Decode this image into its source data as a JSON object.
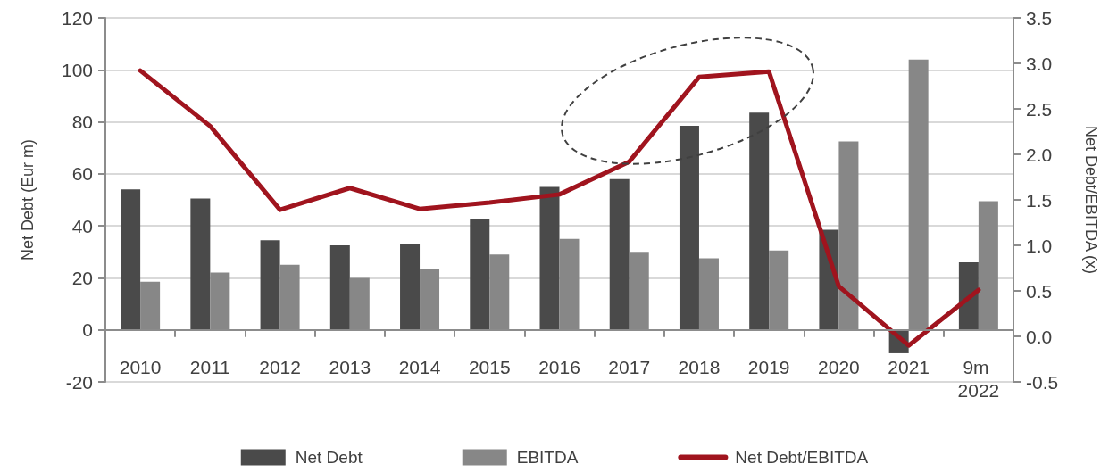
{
  "chart_data": {
    "type": "bar",
    "ylabel": "Net Debt (Eur m)",
    "y2label": "Net Debt/EBITDA (x)",
    "categories": [
      "2010",
      "2011",
      "2012",
      "2013",
      "2014",
      "2015",
      "2016",
      "2017",
      "2018",
      "2019",
      "2020",
      "2021",
      "9m 2022"
    ],
    "series": [
      {
        "name": "Net Debt",
        "color": "#4a4a4a",
        "values": [
          54,
          50.5,
          34.5,
          32.5,
          33,
          42.5,
          55,
          58,
          78.5,
          83.5,
          38.5,
          -9,
          26
        ]
      },
      {
        "name": "EBITDA",
        "color": "#878787",
        "values": [
          18.5,
          22,
          25,
          20,
          23.5,
          29,
          35,
          30,
          27.5,
          30.5,
          72.5,
          104,
          49.5
        ]
      },
      {
        "name": "Net Debt/EBITDA",
        "type": "line",
        "axis": "y2",
        "color": "#a0141e",
        "values": [
          2.92,
          2.31,
          1.39,
          1.63,
          1.4,
          1.47,
          1.56,
          1.92,
          2.85,
          2.91,
          0.55,
          -0.1,
          0.51
        ]
      }
    ],
    "ylim": [
      -20,
      120
    ],
    "yticks": [
      -20,
      0,
      20,
      40,
      60,
      80,
      100,
      120
    ],
    "y2lim": [
      -0.5,
      3.5
    ],
    "y2ticks": [
      -0.5,
      {
        "value": 0,
        "label": "0.0"
      },
      0.5,
      {
        "value": 1,
        "label": "1.0"
      },
      1.5,
      {
        "value": 2,
        "label": "2.0"
      },
      2.5,
      {
        "value": 3,
        "label": "3.0"
      },
      3.5
    ],
    "grid": "y",
    "legend": "bottom",
    "marker": "none",
    "line_style": "solid"
  }
}
